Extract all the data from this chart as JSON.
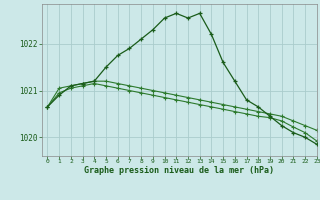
{
  "title": "Graphe pression niveau de la mer (hPa)",
  "background_color": "#cce8e8",
  "grid_color": "#aacccc",
  "line_color_main": "#1a5c1a",
  "line_color_secondary": "#2d7a2d",
  "xlim": [
    -0.5,
    23
  ],
  "ylim": [
    1019.6,
    1022.85
  ],
  "yticks": [
    1020,
    1021,
    1022
  ],
  "xticks": [
    0,
    1,
    2,
    3,
    4,
    5,
    6,
    7,
    8,
    9,
    10,
    11,
    12,
    13,
    14,
    15,
    16,
    17,
    18,
    19,
    20,
    21,
    22,
    23
  ],
  "series1_x": [
    0,
    1,
    2,
    3,
    4,
    5,
    6,
    7,
    8,
    9,
    10,
    11,
    12,
    13,
    14,
    15,
    16,
    17,
    18,
    19,
    20,
    21,
    22,
    23
  ],
  "series1_y": [
    1020.65,
    1020.9,
    1021.1,
    1021.15,
    1021.2,
    1021.5,
    1021.75,
    1021.9,
    1022.1,
    1022.3,
    1022.55,
    1022.65,
    1022.55,
    1022.65,
    1022.2,
    1021.6,
    1021.2,
    1020.8,
    1020.65,
    1020.45,
    1020.25,
    1020.1,
    1020.0,
    1019.85
  ],
  "series2_x": [
    0,
    1,
    2,
    3,
    4,
    5,
    6,
    7,
    8,
    9,
    10,
    11,
    12,
    13,
    14,
    15,
    16,
    17,
    18,
    19,
    20,
    21,
    22,
    23
  ],
  "series2_y": [
    1020.65,
    1021.05,
    1021.1,
    1021.15,
    1021.2,
    1021.2,
    1021.15,
    1021.1,
    1021.05,
    1021.0,
    1020.95,
    1020.9,
    1020.85,
    1020.8,
    1020.75,
    1020.7,
    1020.65,
    1020.6,
    1020.55,
    1020.5,
    1020.45,
    1020.35,
    1020.25,
    1020.15
  ],
  "series3_x": [
    0,
    1,
    2,
    3,
    4,
    5,
    6,
    7,
    8,
    9,
    10,
    11,
    12,
    13,
    14,
    15,
    16,
    17,
    18,
    19,
    20,
    21,
    22,
    23
  ],
  "series3_y": [
    1020.65,
    1020.95,
    1021.05,
    1021.1,
    1021.15,
    1021.1,
    1021.05,
    1021.0,
    1020.95,
    1020.9,
    1020.85,
    1020.8,
    1020.75,
    1020.7,
    1020.65,
    1020.6,
    1020.55,
    1020.5,
    1020.45,
    1020.42,
    1020.35,
    1020.22,
    1020.1,
    1019.92
  ]
}
